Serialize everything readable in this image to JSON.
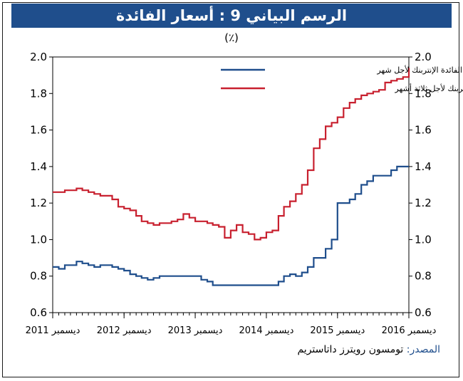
{
  "title": "الرسم البياني 9 : أسعار الفائدة",
  "unit": "(٪)",
  "source_label": "المصدر:",
  "source_text": "تومسون رويترز داتاستريم",
  "colors": {
    "title_bg": "#1f4e8c",
    "series_1m": "#1f4e8c",
    "series_3m": "#c8202f"
  },
  "chart_data": {
    "type": "line",
    "ylim": [
      0.6,
      2.0
    ],
    "yticks": [
      "0.6",
      "0.8",
      "1.0",
      "1.2",
      "1.4",
      "1.6",
      "1.8",
      "2.0"
    ],
    "xticks": [
      "ديسمبر 2011",
      "ديسمبر 2012",
      "ديسمبر 2013",
      "ديسمبر 2014",
      "ديسمبر 2015",
      "ديسمبر 2016"
    ],
    "xrange": [
      "2011-12",
      "2016-12"
    ],
    "legend_position": "top-center",
    "series": [
      {
        "name": "أسعار الفائدة الإنتربنك لأجل شهر",
        "color": "#1f4e8c",
        "points": [
          [
            "2011-12-01",
            0.85
          ],
          [
            "2012-01-01",
            0.84
          ],
          [
            "2012-02-01",
            0.86
          ],
          [
            "2012-03-01",
            0.86
          ],
          [
            "2012-04-01",
            0.88
          ],
          [
            "2012-05-01",
            0.87
          ],
          [
            "2012-06-01",
            0.86
          ],
          [
            "2012-07-01",
            0.85
          ],
          [
            "2012-08-01",
            0.86
          ],
          [
            "2012-09-01",
            0.86
          ],
          [
            "2012-10-01",
            0.85
          ],
          [
            "2012-11-01",
            0.84
          ],
          [
            "2012-12-01",
            0.83
          ],
          [
            "2013-01-01",
            0.81
          ],
          [
            "2013-02-01",
            0.8
          ],
          [
            "2013-03-01",
            0.79
          ],
          [
            "2013-04-01",
            0.78
          ],
          [
            "2013-05-01",
            0.79
          ],
          [
            "2013-06-01",
            0.8
          ],
          [
            "2013-09-01",
            0.8
          ],
          [
            "2013-12-01",
            0.8
          ],
          [
            "2014-01-01",
            0.78
          ],
          [
            "2014-02-01",
            0.77
          ],
          [
            "2014-03-01",
            0.75
          ],
          [
            "2014-06-01",
            0.75
          ],
          [
            "2014-09-01",
            0.75
          ],
          [
            "2014-12-01",
            0.75
          ],
          [
            "2015-01-01",
            0.75
          ],
          [
            "2015-02-01",
            0.77
          ],
          [
            "2015-03-01",
            0.8
          ],
          [
            "2015-04-01",
            0.81
          ],
          [
            "2015-05-01",
            0.8
          ],
          [
            "2015-06-01",
            0.82
          ],
          [
            "2015-07-01",
            0.85
          ],
          [
            "2015-08-01",
            0.9
          ],
          [
            "2015-09-01",
            0.9
          ],
          [
            "2015-10-01",
            0.95
          ],
          [
            "2015-11-01",
            1.0
          ],
          [
            "2015-12-01",
            1.2
          ],
          [
            "2016-01-01",
            1.2
          ],
          [
            "2016-02-01",
            1.22
          ],
          [
            "2016-03-01",
            1.25
          ],
          [
            "2016-04-01",
            1.3
          ],
          [
            "2016-05-01",
            1.32
          ],
          [
            "2016-06-01",
            1.35
          ],
          [
            "2016-07-01",
            1.35
          ],
          [
            "2016-08-01",
            1.35
          ],
          [
            "2016-09-01",
            1.38
          ],
          [
            "2016-10-01",
            1.4
          ],
          [
            "2016-11-01",
            1.4
          ],
          [
            "2016-12-01",
            1.4
          ]
        ]
      },
      {
        "name": "أسعار الفائدة الإنتربنك لأجل ثلاثة أشهر",
        "color": "#c8202f",
        "points": [
          [
            "2011-12-01",
            1.26
          ],
          [
            "2012-01-01",
            1.26
          ],
          [
            "2012-02-01",
            1.27
          ],
          [
            "2012-03-01",
            1.27
          ],
          [
            "2012-04-01",
            1.28
          ],
          [
            "2012-05-01",
            1.27
          ],
          [
            "2012-06-01",
            1.26
          ],
          [
            "2012-07-01",
            1.25
          ],
          [
            "2012-08-01",
            1.24
          ],
          [
            "2012-09-01",
            1.24
          ],
          [
            "2012-10-01",
            1.22
          ],
          [
            "2012-11-01",
            1.18
          ],
          [
            "2012-12-01",
            1.17
          ],
          [
            "2013-01-01",
            1.16
          ],
          [
            "2013-02-01",
            1.13
          ],
          [
            "2013-03-01",
            1.1
          ],
          [
            "2013-04-01",
            1.09
          ],
          [
            "2013-05-01",
            1.08
          ],
          [
            "2013-06-01",
            1.09
          ],
          [
            "2013-07-01",
            1.09
          ],
          [
            "2013-08-01",
            1.1
          ],
          [
            "2013-09-01",
            1.11
          ],
          [
            "2013-10-01",
            1.14
          ],
          [
            "2013-11-01",
            1.12
          ],
          [
            "2013-12-01",
            1.1
          ],
          [
            "2014-01-01",
            1.1
          ],
          [
            "2014-02-01",
            1.09
          ],
          [
            "2014-03-01",
            1.08
          ],
          [
            "2014-04-01",
            1.07
          ],
          [
            "2014-05-01",
            1.01
          ],
          [
            "2014-06-01",
            1.05
          ],
          [
            "2014-07-01",
            1.08
          ],
          [
            "2014-08-01",
            1.04
          ],
          [
            "2014-09-01",
            1.03
          ],
          [
            "2014-10-01",
            1.0
          ],
          [
            "2014-11-01",
            1.01
          ],
          [
            "2014-12-01",
            1.04
          ],
          [
            "2015-01-01",
            1.05
          ],
          [
            "2015-02-01",
            1.13
          ],
          [
            "2015-03-01",
            1.18
          ],
          [
            "2015-04-01",
            1.21
          ],
          [
            "2015-05-01",
            1.25
          ],
          [
            "2015-06-01",
            1.3
          ],
          [
            "2015-07-01",
            1.38
          ],
          [
            "2015-08-01",
            1.5
          ],
          [
            "2015-09-01",
            1.55
          ],
          [
            "2015-10-01",
            1.62
          ],
          [
            "2015-11-01",
            1.64
          ],
          [
            "2015-12-01",
            1.67
          ],
          [
            "2016-01-01",
            1.72
          ],
          [
            "2016-02-01",
            1.75
          ],
          [
            "2016-03-01",
            1.77
          ],
          [
            "2016-04-01",
            1.79
          ],
          [
            "2016-05-01",
            1.8
          ],
          [
            "2016-06-01",
            1.81
          ],
          [
            "2016-07-01",
            1.82
          ],
          [
            "2016-08-01",
            1.86
          ],
          [
            "2016-09-01",
            1.87
          ],
          [
            "2016-10-01",
            1.88
          ],
          [
            "2016-11-01",
            1.89
          ],
          [
            "2016-12-01",
            1.94
          ]
        ]
      }
    ]
  }
}
